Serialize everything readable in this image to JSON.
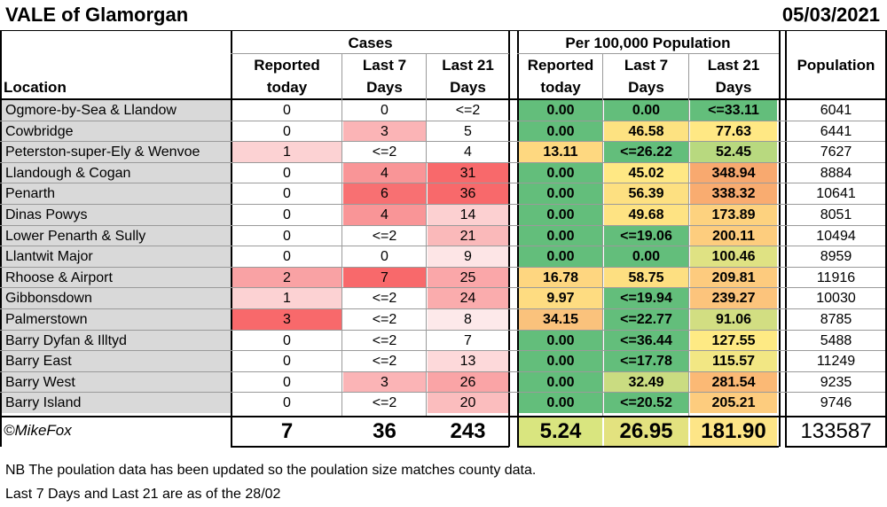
{
  "title": "VALE of Glamorgan",
  "date": "05/03/2021",
  "groups": {
    "cases": "Cases",
    "per100k": "Per 100,000 Population",
    "population": "Population"
  },
  "columns": {
    "location": "Location",
    "c_today": [
      "Reported",
      "today"
    ],
    "c_7": [
      "Last 7",
      "Days"
    ],
    "c_21": [
      "Last 21",
      "Days"
    ],
    "p_today": [
      "Reported",
      "today"
    ],
    "p_7": [
      "Last 7",
      "Days"
    ],
    "p_21": [
      "Last 21",
      "Days"
    ]
  },
  "rows": [
    {
      "loc": "Ogmore-by-Sea & Llandow",
      "c_today": "0",
      "c_7": "0",
      "c_21": "<=2",
      "p_today": "0.00",
      "p_7": "0.00",
      "p_21": "<=33.11",
      "pop": "6041",
      "bg": {
        "c_today": "#ffffff",
        "c_7": "#ffffff",
        "c_21": "#ffffff",
        "p_today": "#63be7b",
        "p_7": "#63be7b",
        "p_21": "#63be7b"
      }
    },
    {
      "loc": "Cowbridge",
      "c_today": "0",
      "c_7": "3",
      "c_21": "5",
      "p_today": "0.00",
      "p_7": "46.58",
      "p_21": "77.63",
      "pop": "6441",
      "bg": {
        "c_today": "#ffffff",
        "c_7": "#fbb4b6",
        "c_21": "#ffffff",
        "p_today": "#63be7b",
        "p_7": "#fde281",
        "p_21": "#ffe884"
      }
    },
    {
      "loc": "Peterston-super-Ely & Wenvoe",
      "c_today": "1",
      "c_7": "<=2",
      "c_21": "4",
      "p_today": "13.11",
      "p_7": "<=26.22",
      "p_21": "52.45",
      "pop": "7627",
      "bg": {
        "c_today": "#fcd2d3",
        "c_7": "#ffffff",
        "c_21": "#ffffff",
        "p_today": "#fed880",
        "p_7": "#63be7b",
        "p_21": "#b8d97f"
      }
    },
    {
      "loc": "Llandough & Cogan",
      "c_today": "0",
      "c_7": "4",
      "c_21": "31",
      "p_today": "0.00",
      "p_7": "45.02",
      "p_21": "348.94",
      "pop": "8884",
      "bg": {
        "c_today": "#ffffff",
        "c_7": "#f99597",
        "c_21": "#f8696b",
        "p_today": "#63be7b",
        "p_7": "#ffe884",
        "p_21": "#f8a96f"
      }
    },
    {
      "loc": "Penarth",
      "c_today": "0",
      "c_7": "6",
      "c_21": "36",
      "p_today": "0.00",
      "p_7": "56.39",
      "p_21": "338.32",
      "pop": "10641",
      "bg": {
        "c_today": "#ffffff",
        "c_7": "#f87072",
        "c_21": "#f8696b",
        "p_today": "#63be7b",
        "p_7": "#fde081",
        "p_21": "#f9ac70"
      }
    },
    {
      "loc": "Dinas Powys",
      "c_today": "0",
      "c_7": "4",
      "c_21": "14",
      "p_today": "0.00",
      "p_7": "49.68",
      "p_21": "173.89",
      "pop": "8051",
      "bg": {
        "c_today": "#ffffff",
        "c_7": "#f99597",
        "c_21": "#fcd0d1",
        "p_today": "#63be7b",
        "p_7": "#fee383",
        "p_21": "#fdd27f"
      }
    },
    {
      "loc": "Lower Penarth & Sully",
      "c_today": "0",
      "c_7": "<=2",
      "c_21": "21",
      "p_today": "0.00",
      "p_7": "<=19.06",
      "p_21": "200.11",
      "pop": "10494",
      "bg": {
        "c_today": "#ffffff",
        "c_7": "#ffffff",
        "c_21": "#fab9ba",
        "p_today": "#63be7b",
        "p_7": "#63be7b",
        "p_21": "#fdcd7e"
      }
    },
    {
      "loc": "Llantwit Major",
      "c_today": "0",
      "c_7": "0",
      "c_21": "9",
      "p_today": "0.00",
      "p_7": "0.00",
      "p_21": "100.46",
      "pop": "8959",
      "bg": {
        "c_today": "#ffffff",
        "c_7": "#ffffff",
        "c_21": "#fde5e6",
        "p_today": "#63be7b",
        "p_7": "#63be7b",
        "p_21": "#dfe283"
      }
    },
    {
      "loc": "Rhoose & Airport",
      "c_today": "2",
      "c_7": "7",
      "c_21": "25",
      "p_today": "16.78",
      "p_7": "58.75",
      "p_21": "209.81",
      "pop": "11916",
      "bg": {
        "c_today": "#f9a2a4",
        "c_7": "#f8696b",
        "c_21": "#faa7a9",
        "p_today": "#fed680",
        "p_7": "#fddf81",
        "p_21": "#fdcb7e"
      }
    },
    {
      "loc": "Gibbonsdown",
      "c_today": "1",
      "c_7": "<=2",
      "c_21": "24",
      "p_today": "9.97",
      "p_7": "<=19.94",
      "p_21": "239.27",
      "pop": "10030",
      "bg": {
        "c_today": "#fcd2d3",
        "c_7": "#ffffff",
        "c_21": "#faacad",
        "p_today": "#fedc81",
        "p_7": "#63be7b",
        "p_21": "#fcc47c"
      }
    },
    {
      "loc": "Palmerstown",
      "c_today": "3",
      "c_7": "<=2",
      "c_21": "8",
      "p_today": "34.15",
      "p_7": "<=22.77",
      "p_21": "91.06",
      "pop": "8785",
      "bg": {
        "c_today": "#f8696b",
        "c_7": "#ffffff",
        "c_21": "#fde9ea",
        "p_today": "#fac27c",
        "p_7": "#63be7b",
        "p_21": "#d2de82"
      }
    },
    {
      "loc": "Barry Dyfan & Illtyd",
      "c_today": "0",
      "c_7": "<=2",
      "c_21": "7",
      "p_today": "0.00",
      "p_7": "<=36.44",
      "p_21": "127.55",
      "pop": "5488",
      "bg": {
        "c_today": "#ffffff",
        "c_7": "#ffffff",
        "c_21": "#ffffff",
        "p_today": "#63be7b",
        "p_7": "#63be7b",
        "p_21": "#feea84"
      }
    },
    {
      "loc": "Barry East",
      "c_today": "0",
      "c_7": "<=2",
      "c_21": "13",
      "p_today": "0.00",
      "p_7": "<=17.78",
      "p_21": "115.57",
      "pop": "11249",
      "bg": {
        "c_today": "#ffffff",
        "c_7": "#ffffff",
        "c_21": "#fdd9da",
        "p_today": "#63be7b",
        "p_7": "#63be7b",
        "p_21": "#f2e784"
      }
    },
    {
      "loc": "Barry West",
      "c_today": "0",
      "c_7": "3",
      "c_21": "26",
      "p_today": "0.00",
      "p_7": "32.49",
      "p_21": "281.54",
      "pop": "9235",
      "bg": {
        "c_today": "#ffffff",
        "c_7": "#fbb4b6",
        "c_21": "#faa4a6",
        "p_today": "#63be7b",
        "p_7": "#cadc81",
        "p_21": "#fbb975"
      }
    },
    {
      "loc": "Barry Island",
      "c_today": "0",
      "c_7": "<=2",
      "c_21": "20",
      "p_today": "0.00",
      "p_7": "<=20.52",
      "p_21": "205.21",
      "pop": "9746",
      "bg": {
        "c_today": "#ffffff",
        "c_7": "#ffffff",
        "c_21": "#fbbdbe",
        "p_today": "#63be7b",
        "p_7": "#63be7b",
        "p_21": "#fdcc7e"
      }
    }
  ],
  "totals": {
    "c_today": "7",
    "c_7": "36",
    "c_21": "243",
    "p_today": "5.24",
    "p_7": "26.95",
    "p_21": "181.90",
    "pop": "133587",
    "bg_today": "#d9e57f",
    "bg_7": "#e3e27f",
    "bg_21": "#fde587"
  },
  "credit": "©MikeFox",
  "notes": [
    "NB The poulation data has been updated so the poulation size matches county data.",
    "Last 7 Days and Last 21 are as of the 28/02"
  ]
}
